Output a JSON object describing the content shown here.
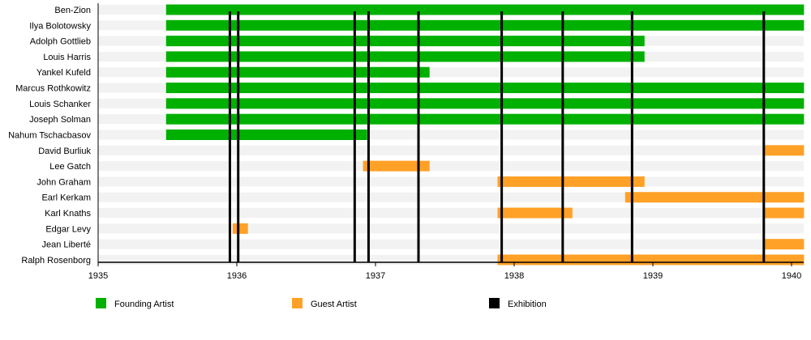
{
  "chart_data": {
    "type": "timeline",
    "xlim": [
      1935,
      1940.09
    ],
    "x_ticks": [
      "1935",
      "1936",
      "1937",
      "1938",
      "1939",
      "1940"
    ],
    "colors": {
      "founding": "#00b000",
      "guest": "#ffa127",
      "exhibition": "#000000",
      "stripe": "#f2f2f2"
    },
    "rows": [
      {
        "name": "Ben-Zion",
        "spans": [
          {
            "type": "founding",
            "start": 1935.49,
            "end": 1940.09
          }
        ]
      },
      {
        "name": "Ilya Bolotowsky",
        "spans": [
          {
            "type": "founding",
            "start": 1935.49,
            "end": 1940.09
          }
        ]
      },
      {
        "name": "Adolph Gottlieb",
        "spans": [
          {
            "type": "founding",
            "start": 1935.49,
            "end": 1938.94
          }
        ]
      },
      {
        "name": "Louis Harris",
        "spans": [
          {
            "type": "founding",
            "start": 1935.49,
            "end": 1938.94
          }
        ]
      },
      {
        "name": "Yankel Kufeld",
        "spans": [
          {
            "type": "founding",
            "start": 1935.49,
            "end": 1937.39
          }
        ]
      },
      {
        "name": "Marcus Rothkowitz",
        "spans": [
          {
            "type": "founding",
            "start": 1935.49,
            "end": 1940.09
          }
        ]
      },
      {
        "name": "Louis Schanker",
        "spans": [
          {
            "type": "founding",
            "start": 1935.49,
            "end": 1940.09
          }
        ]
      },
      {
        "name": "Joseph Solman",
        "spans": [
          {
            "type": "founding",
            "start": 1935.49,
            "end": 1940.09
          }
        ]
      },
      {
        "name": "Nahum Tschacbasov",
        "spans": [
          {
            "type": "founding",
            "start": 1935.49,
            "end": 1936.94
          }
        ]
      },
      {
        "name": "David Burliuk",
        "spans": [
          {
            "type": "guest",
            "start": 1939.8,
            "end": 1940.09
          }
        ]
      },
      {
        "name": "Lee Gatch",
        "spans": [
          {
            "type": "guest",
            "start": 1936.91,
            "end": 1937.39
          }
        ]
      },
      {
        "name": "John Graham",
        "spans": [
          {
            "type": "guest",
            "start": 1937.88,
            "end": 1938.94
          }
        ]
      },
      {
        "name": "Earl Kerkam",
        "spans": [
          {
            "type": "guest",
            "start": 1938.8,
            "end": 1940.09
          }
        ]
      },
      {
        "name": "Karl Knaths",
        "spans": [
          {
            "type": "guest",
            "start": 1937.88,
            "end": 1938.42
          },
          {
            "type": "guest",
            "start": 1939.8,
            "end": 1940.09
          }
        ]
      },
      {
        "name": "Edgar Levy",
        "spans": [
          {
            "type": "guest",
            "start": 1935.97,
            "end": 1936.08
          }
        ]
      },
      {
        "name": "Jean Liberté",
        "spans": [
          {
            "type": "guest",
            "start": 1939.8,
            "end": 1940.09
          }
        ]
      },
      {
        "name": "Ralph Rosenborg",
        "spans": [
          {
            "type": "guest",
            "start": 1937.88,
            "end": 1940.09
          }
        ]
      }
    ],
    "exhibitions": [
      1935.95,
      1936.01,
      1936.85,
      1936.95,
      1937.31,
      1937.91,
      1938.35,
      1938.85,
      1939.8
    ],
    "legend": [
      {
        "type": "founding",
        "label": "Founding Artist"
      },
      {
        "type": "guest",
        "label": "Guest Artist"
      },
      {
        "type": "exhibition",
        "label": "Exhibition"
      }
    ],
    "legend_position": "bottom"
  }
}
